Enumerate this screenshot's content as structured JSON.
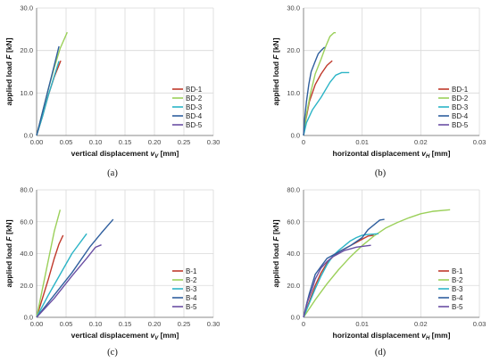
{
  "chart_data": [
    {
      "type": "line",
      "panel": "(a)",
      "xlabel": "vertical displacement",
      "xsym": "v",
      "xsub": "V",
      "xunit": "[mm]",
      "ylabel": "applied load",
      "ysym": "F",
      "yunit": "[kN]",
      "xlim": [
        0,
        0.3
      ],
      "ylim": [
        0,
        30
      ],
      "x_ticks": [
        "0.00",
        "0.05",
        "0.10",
        "0.15",
        "0.20",
        "0.25",
        "0.30"
      ],
      "y_ticks": [
        "0.0",
        "10.0",
        "20.0",
        "30.0"
      ],
      "grid": true,
      "legend_position": "bottom-right",
      "series": [
        {
          "name": "BD-1",
          "color": "#c0392b",
          "points": [
            [
              0,
              0
            ],
            [
              0.01,
              4.5
            ],
            [
              0.02,
              9.5
            ],
            [
              0.03,
              13.8
            ],
            [
              0.041,
              17.6
            ]
          ]
        },
        {
          "name": "BD-2",
          "color": "#9bd05a",
          "points": [
            [
              0,
              0
            ],
            [
              0.01,
              5.5
            ],
            [
              0.02,
              11
            ],
            [
              0.03,
              16
            ],
            [
              0.04,
              20.5
            ],
            [
              0.052,
              24.3
            ]
          ]
        },
        {
          "name": "BD-3",
          "color": "#2bb4c6",
          "points": [
            [
              0,
              0
            ],
            [
              0.01,
              4.5
            ],
            [
              0.02,
              9.5
            ],
            [
              0.03,
              14
            ],
            [
              0.038,
              17.5
            ]
          ]
        },
        {
          "name": "BD-4",
          "color": "#2f5f9e",
          "points": [
            [
              0,
              0
            ],
            [
              0.01,
              5.5
            ],
            [
              0.02,
              11
            ],
            [
              0.03,
              16.5
            ],
            [
              0.038,
              21
            ]
          ]
        },
        {
          "name": "BD-5",
          "color": "#6a4fa3",
          "points": []
        }
      ]
    },
    {
      "type": "line",
      "panel": "(b)",
      "xlabel": "horizontal displacement",
      "xsym": "v",
      "xsub": "H",
      "xunit": "[mm]",
      "ylabel": "applied load",
      "ysym": "F",
      "yunit": "[kN]",
      "xlim": [
        0,
        0.03
      ],
      "ylim": [
        0,
        30
      ],
      "x_ticks": [
        "0",
        "0.01",
        "0.02",
        "0.03"
      ],
      "y_ticks": [
        "0.0",
        "10.0",
        "20.0",
        "30.0"
      ],
      "grid": true,
      "legend_position": "bottom-right",
      "series": [
        {
          "name": "BD-1",
          "color": "#c0392b",
          "points": [
            [
              0,
              0
            ],
            [
              0.0003,
              3
            ],
            [
              0.001,
              8
            ],
            [
              0.002,
              12
            ],
            [
              0.003,
              14.5
            ],
            [
              0.004,
              16.5
            ],
            [
              0.0049,
              17.6
            ]
          ]
        },
        {
          "name": "BD-2",
          "color": "#9bd05a",
          "points": [
            [
              0,
              0
            ],
            [
              0.0005,
              5
            ],
            [
              0.0012,
              10
            ],
            [
              0.002,
              14.5
            ],
            [
              0.003,
              18
            ],
            [
              0.0038,
              21
            ],
            [
              0.0045,
              23.3
            ],
            [
              0.0052,
              24.2
            ],
            [
              0.0055,
              24.2
            ]
          ]
        },
        {
          "name": "BD-3",
          "color": "#2bb4c6",
          "points": [
            [
              0,
              0
            ],
            [
              0.0005,
              3
            ],
            [
              0.0015,
              6
            ],
            [
              0.003,
              9
            ],
            [
              0.0045,
              12.5
            ],
            [
              0.0055,
              14.2
            ],
            [
              0.0065,
              14.8
            ],
            [
              0.0078,
              14.8
            ]
          ]
        },
        {
          "name": "BD-4",
          "color": "#2f5f9e",
          "points": [
            [
              0,
              0
            ],
            [
              0.0002,
              4
            ],
            [
              0.0005,
              8
            ],
            [
              0.0009,
              12
            ],
            [
              0.0013,
              15
            ],
            [
              0.002,
              17.5
            ],
            [
              0.0025,
              19.2
            ],
            [
              0.003,
              20
            ],
            [
              0.0036,
              20.8
            ]
          ]
        },
        {
          "name": "BD-5",
          "color": "#6a4fa3",
          "points": []
        }
      ]
    },
    {
      "type": "line",
      "panel": "(c)",
      "xlabel": "vertical displacement",
      "xsym": "v",
      "xsub": "V",
      "xunit": "[mm]",
      "ylabel": "applied load",
      "ysym": "F",
      "yunit": "[kN]",
      "xlim": [
        0,
        0.3
      ],
      "ylim": [
        0,
        80
      ],
      "x_ticks": [
        "0.00",
        "0.05",
        "0.10",
        "0.15",
        "0.20",
        "0.25",
        "0.30"
      ],
      "y_ticks": [
        "0.0",
        "20.0",
        "40.0",
        "60.0",
        "80.0"
      ],
      "grid": true,
      "legend_position": "bottom-right",
      "series": [
        {
          "name": "B-1",
          "color": "#c0392b",
          "points": [
            [
              0,
              0
            ],
            [
              0.01,
              12
            ],
            [
              0.02,
              24
            ],
            [
              0.03,
              37
            ],
            [
              0.038,
              46
            ],
            [
              0.045,
              51.5
            ]
          ]
        },
        {
          "name": "B-2",
          "color": "#9bd05a",
          "points": [
            [
              0,
              0
            ],
            [
              0.01,
              18
            ],
            [
              0.02,
              36
            ],
            [
              0.03,
              54
            ],
            [
              0.04,
              67.5
            ]
          ]
        },
        {
          "name": "B-3",
          "color": "#2bb4c6",
          "points": [
            [
              0,
              0
            ],
            [
              0.02,
              14
            ],
            [
              0.04,
              27
            ],
            [
              0.06,
              40
            ],
            [
              0.085,
              52.5
            ]
          ]
        },
        {
          "name": "B-4",
          "color": "#2f5f9e",
          "points": [
            [
              0,
              0
            ],
            [
              0.03,
              14
            ],
            [
              0.06,
              28
            ],
            [
              0.09,
              44
            ],
            [
              0.11,
              53
            ],
            [
              0.13,
              61.5
            ]
          ]
        },
        {
          "name": "B-5",
          "color": "#6a4fa3",
          "points": [
            [
              0,
              0
            ],
            [
              0.03,
              12
            ],
            [
              0.06,
              26
            ],
            [
              0.085,
              37
            ],
            [
              0.1,
              44
            ],
            [
              0.11,
              45.5
            ]
          ]
        }
      ]
    },
    {
      "type": "line",
      "panel": "(d)",
      "xlabel": "horizontal displacement",
      "xsym": "v",
      "xsub": "H",
      "xunit": "[mm]",
      "ylabel": "applied load",
      "ysym": "F",
      "yunit": "[kN]",
      "xlim": [
        0,
        0.03
      ],
      "ylim": [
        0,
        80
      ],
      "x_ticks": [
        "0",
        "0.01",
        "0.02",
        "0.03"
      ],
      "y_ticks": [
        "0.0",
        "20.0",
        "40.0",
        "60.0",
        "80.0"
      ],
      "grid": true,
      "legend_position": "bottom-right",
      "series": [
        {
          "name": "B-1",
          "color": "#c0392b",
          "points": [
            [
              0,
              0
            ],
            [
              0.001,
              10
            ],
            [
              0.002,
              20
            ],
            [
              0.003,
              28
            ],
            [
              0.004,
              34
            ],
            [
              0.005,
              38
            ],
            [
              0.006,
              41
            ],
            [
              0.007,
              43
            ],
            [
              0.008,
              45
            ],
            [
              0.009,
              47
            ],
            [
              0.01,
              49
            ],
            [
              0.011,
              51
            ],
            [
              0.012,
              51.5
            ]
          ]
        },
        {
          "name": "B-2",
          "color": "#9bd05a",
          "points": [
            [
              0,
              0
            ],
            [
              0.002,
              11
            ],
            [
              0.004,
              21
            ],
            [
              0.006,
              30
            ],
            [
              0.008,
              38
            ],
            [
              0.01,
              45
            ],
            [
              0.012,
              51
            ],
            [
              0.014,
              56
            ],
            [
              0.016,
              59.5
            ],
            [
              0.018,
              62.5
            ],
            [
              0.02,
              65
            ],
            [
              0.022,
              66.5
            ],
            [
              0.025,
              67.5
            ]
          ]
        },
        {
          "name": "B-3",
          "color": "#2bb4c6",
          "points": [
            [
              0,
              0
            ],
            [
              0.001,
              9
            ],
            [
              0.002,
              18
            ],
            [
              0.003,
              26
            ],
            [
              0.004,
              33
            ],
            [
              0.005,
              38.5
            ],
            [
              0.006,
              42
            ],
            [
              0.007,
              45
            ],
            [
              0.008,
              48
            ],
            [
              0.009,
              50
            ],
            [
              0.01,
              51.5
            ],
            [
              0.011,
              52
            ],
            [
              0.0128,
              52.5
            ]
          ]
        },
        {
          "name": "B-4",
          "color": "#2f5f9e",
          "points": [
            [
              0,
              0
            ],
            [
              0.0005,
              8
            ],
            [
              0.001,
              15
            ],
            [
              0.0015,
              21
            ],
            [
              0.002,
              27
            ],
            [
              0.003,
              32
            ],
            [
              0.004,
              37
            ],
            [
              0.006,
              41
            ],
            [
              0.008,
              45
            ],
            [
              0.01,
              50
            ],
            [
              0.011,
              55
            ],
            [
              0.012,
              58
            ],
            [
              0.013,
              61
            ],
            [
              0.0138,
              61.5
            ]
          ]
        },
        {
          "name": "B-5",
          "color": "#6a4fa3",
          "points": [
            [
              0,
              0
            ],
            [
              0.0007,
              10
            ],
            [
              0.0015,
              18
            ],
            [
              0.002,
              24
            ],
            [
              0.003,
              31
            ],
            [
              0.004,
              35
            ],
            [
              0.005,
              38
            ],
            [
              0.006,
              40
            ],
            [
              0.007,
              42
            ],
            [
              0.008,
              43
            ],
            [
              0.009,
              44
            ],
            [
              0.01,
              44.5
            ],
            [
              0.0115,
              45.2
            ]
          ]
        }
      ]
    }
  ]
}
